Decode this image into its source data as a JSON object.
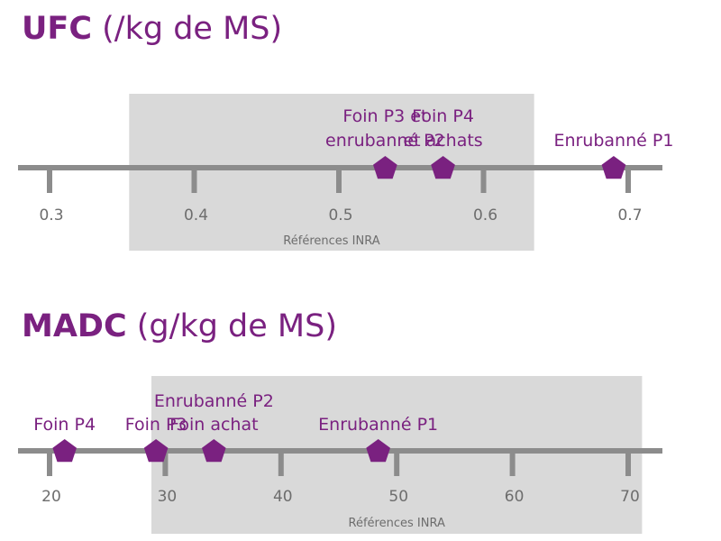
{
  "colors": {
    "accent": "#7a2180",
    "axis": "#8c8c8c",
    "band": "#d9d9d9",
    "tick_text": "#6d6d6d"
  },
  "chart_data": [
    {
      "type": "scatter",
      "title_bold": "UFC",
      "title_rest": " (/kg de MS)",
      "xlim": [
        0.3,
        0.7
      ],
      "ticks": [
        "0.3",
        "0.4",
        "0.5",
        "0.6",
        "0.7"
      ],
      "reference_range": {
        "label": "Références INRA",
        "from": 0.355,
        "to": 0.635
      },
      "points": [
        {
          "x": 0.532,
          "label": [
            "Foin P3 et",
            "enrubanné P2"
          ]
        },
        {
          "x": 0.572,
          "label": [
            "Foin P4",
            "et achats"
          ]
        },
        {
          "x": 0.69,
          "label": [
            "Enrubanné P1"
          ]
        }
      ]
    },
    {
      "type": "scatter",
      "title_bold": "MADC",
      "title_rest": " (g/kg de MS)",
      "xlim": [
        20,
        70
      ],
      "ticks": [
        "20",
        "30",
        "40",
        "50",
        "60",
        "70"
      ],
      "reference_range": {
        "label": "Références INRA",
        "from": 28.8,
        "to": 71.2
      },
      "points": [
        {
          "x": 21.3,
          "label": [
            "Foin P4"
          ]
        },
        {
          "x": 29.2,
          "label": [
            "Foin P3"
          ]
        },
        {
          "x": 34.2,
          "label": [
            "Enrubanné P2",
            "Foin achat"
          ]
        },
        {
          "x": 48.4,
          "label": [
            "Enrubanné P1"
          ]
        }
      ]
    }
  ]
}
